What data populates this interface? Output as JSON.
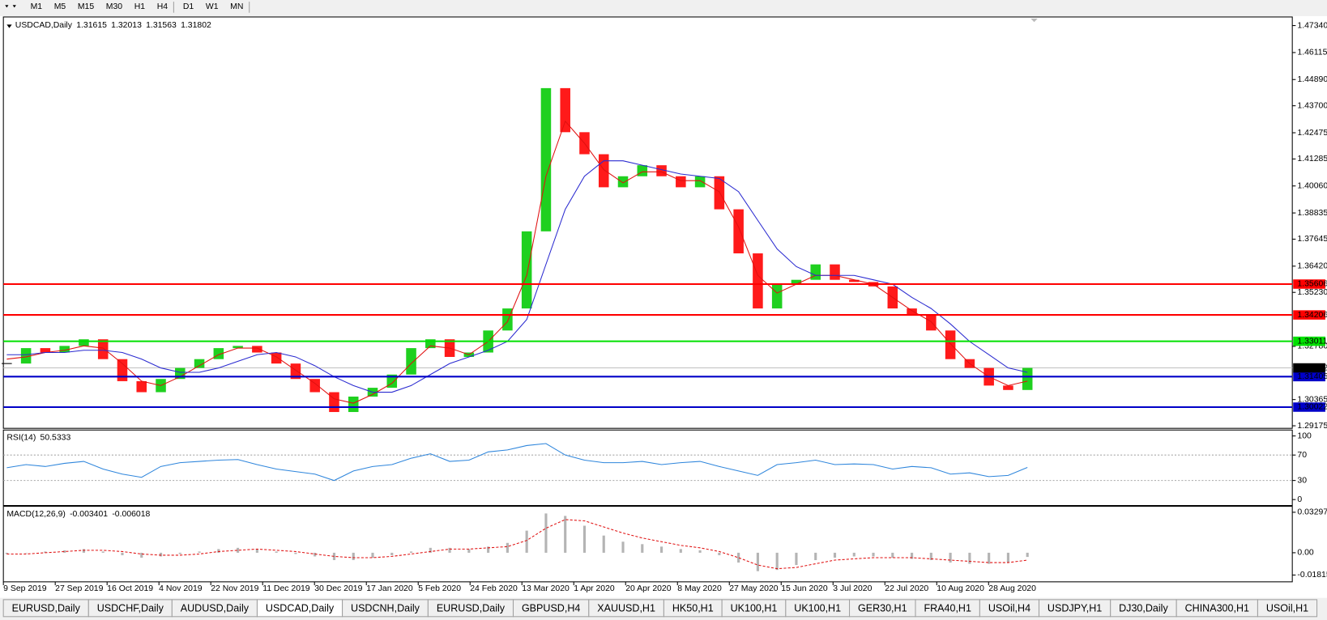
{
  "toolbar": {
    "timeframes": [
      "M1",
      "M5",
      "M15",
      "M30",
      "H1",
      "H4",
      "D1",
      "W1",
      "MN"
    ]
  },
  "chart": {
    "type": "candlestick",
    "title": "USDCAD,Daily",
    "ohlc": [
      1.31615,
      1.32013,
      1.31563,
      1.31802
    ],
    "close": [
      1.32,
      1.327,
      1.325,
      1.328,
      1.331,
      1.322,
      1.312,
      1.307,
      1.313,
      1.318,
      1.322,
      1.327,
      1.328,
      1.325,
      1.32,
      1.313,
      1.307,
      1.298,
      1.305,
      1.309,
      1.315,
      1.327,
      1.331,
      1.323,
      1.325,
      1.335,
      1.345,
      1.38,
      1.445,
      1.425,
      1.415,
      1.4,
      1.405,
      1.41,
      1.405,
      1.4,
      1.405,
      1.39,
      1.37,
      1.345,
      1.356,
      1.358,
      1.365,
      1.358,
      1.357,
      1.355,
      1.345,
      1.342,
      1.335,
      1.322,
      1.318,
      1.31,
      1.308,
      1.31802
    ],
    "up_color": "#1fd01f",
    "down_color": "#ff1a1a",
    "ma": [
      {
        "color": "#e01010",
        "values": [
          1.322,
          1.323,
          1.325,
          1.326,
          1.328,
          1.327,
          1.32,
          1.312,
          1.31,
          1.314,
          1.319,
          1.324,
          1.327,
          1.327,
          1.323,
          1.317,
          1.311,
          1.304,
          1.302,
          1.306,
          1.311,
          1.32,
          1.328,
          1.327,
          1.324,
          1.33,
          1.339,
          1.36,
          1.405,
          1.43,
          1.42,
          1.408,
          1.402,
          1.407,
          1.407,
          1.403,
          1.403,
          1.398,
          1.382,
          1.36,
          1.352,
          1.356,
          1.36,
          1.36,
          1.358,
          1.356,
          1.35,
          1.344,
          1.339,
          1.329,
          1.32,
          1.314,
          1.31,
          1.312
        ]
      },
      {
        "color": "#2a2ad0",
        "values": [
          1.324,
          1.324,
          1.325,
          1.325,
          1.326,
          1.326,
          1.325,
          1.322,
          1.318,
          1.316,
          1.316,
          1.318,
          1.321,
          1.324,
          1.325,
          1.323,
          1.319,
          1.314,
          1.31,
          1.307,
          1.307,
          1.31,
          1.315,
          1.32,
          1.323,
          1.326,
          1.33,
          1.34,
          1.365,
          1.39,
          1.405,
          1.412,
          1.412,
          1.41,
          1.408,
          1.406,
          1.405,
          1.404,
          1.398,
          1.385,
          1.372,
          1.364,
          1.36,
          1.36,
          1.36,
          1.358,
          1.356,
          1.35,
          1.345,
          1.338,
          1.33,
          1.324,
          1.318,
          1.316
        ]
      }
    ],
    "ylim": [
      1.2906,
      1.4773
    ],
    "yticks": [
      {
        "value": 1.4734,
        "label": "1.47340"
      },
      1.46115,
      {
        "value": 1.4489,
        "label": "1.44890"
      },
      {
        "value": 1.437,
        "label": "1.43700"
      },
      1.42475,
      1.41285,
      {
        "value": 1.4006,
        "label": "1.40060"
      },
      1.38835,
      1.37645,
      {
        "value": 1.3642,
        "label": "1.36420"
      },
      {
        "value": 1.3523,
        "label": "1.35230"
      },
      {
        "value": 1.3278,
        "label": "1.32780"
      },
      1.30365,
      1.29175
    ],
    "levels": [
      {
        "value": 1.35606,
        "color": "#ff0000"
      },
      {
        "value": 1.34206,
        "color": "#ff0000"
      },
      {
        "value": 1.33011,
        "color": "#00e000"
      },
      {
        "value": 1.31405,
        "color": "#0000c8"
      },
      {
        "value": 1.30022,
        "color": "#0000c8"
      }
    ],
    "bid": 1.31802,
    "dates": [
      "9 Sep 2019",
      "27 Sep 2019",
      "16 Oct 2019",
      "4 Nov 2019",
      "22 Nov 2019",
      "11 Dec 2019",
      "30 Dec 2019",
      "17 Jan 2020",
      "5 Feb 2020",
      "24 Feb 2020",
      "13 Mar 2020",
      "1 Apr 2020",
      "20 Apr 2020",
      "8 May 2020",
      "27 May 2020",
      "15 Jun 2020",
      "3 Jul 2020",
      "22 Jul 2020",
      "10 Aug 2020",
      "28 Aug 2020"
    ]
  },
  "rsi": {
    "label": "RSI(14)",
    "value": 50.5333,
    "color": "#2f86dc",
    "values": [
      50,
      55,
      52,
      57,
      60,
      48,
      40,
      35,
      52,
      58,
      60,
      62,
      63,
      55,
      48,
      44,
      40,
      30,
      45,
      52,
      55,
      65,
      72,
      60,
      62,
      75,
      78,
      85,
      88,
      70,
      62,
      58,
      58,
      60,
      55,
      58,
      60,
      52,
      45,
      38,
      55,
      58,
      62,
      55,
      56,
      55,
      48,
      52,
      50,
      40,
      42,
      36,
      38,
      50.5333
    ],
    "ylim": [
      0,
      100
    ],
    "yticks": [
      100,
      70,
      30,
      0
    ],
    "levels": [
      70,
      30
    ]
  },
  "macd": {
    "label": "MACD(12,26,9)",
    "main_value": -0.003401,
    "signal_value": -0.006018,
    "main": [
      -0.001,
      0.0,
      0.001,
      0.002,
      0.003,
      0.001,
      -0.002,
      -0.004,
      -0.003,
      -0.001,
      0.001,
      0.003,
      0.004,
      0.003,
      0.001,
      -0.001,
      -0.003,
      -0.006,
      -0.006,
      -0.004,
      -0.002,
      0.001,
      0.004,
      0.004,
      0.003,
      0.005,
      0.008,
      0.018,
      0.032,
      0.03,
      0.022,
      0.014,
      0.009,
      0.007,
      0.005,
      0.003,
      0.002,
      -0.002,
      -0.008,
      -0.015,
      -0.014,
      -0.01,
      -0.006,
      -0.004,
      -0.003,
      -0.003,
      -0.004,
      -0.005,
      -0.006,
      -0.008,
      -0.009,
      -0.009,
      -0.008,
      -0.003401
    ],
    "signal": [
      -0.001,
      -0.001,
      0.0,
      0.001,
      0.002,
      0.002,
      0.001,
      -0.001,
      -0.002,
      -0.002,
      -0.001,
      0.001,
      0.002,
      0.003,
      0.002,
      0.001,
      -0.001,
      -0.003,
      -0.004,
      -0.004,
      -0.003,
      -0.001,
      0.001,
      0.003,
      0.003,
      0.004,
      0.005,
      0.01,
      0.02,
      0.027,
      0.026,
      0.021,
      0.016,
      0.012,
      0.009,
      0.006,
      0.004,
      0.001,
      -0.004,
      -0.01,
      -0.013,
      -0.012,
      -0.009,
      -0.006,
      -0.005,
      -0.004,
      -0.004,
      -0.004,
      -0.005,
      -0.006,
      -0.007,
      -0.008,
      -0.008,
      -0.006018
    ],
    "main_color": "#b4b4b4",
    "signal_color": "#e01010",
    "ylim": [
      -0.023,
      0.0371
    ],
    "yticks": [
      0.032972,
      {
        "value": 0,
        "label": "0.00"
      },
      -0.01815
    ]
  },
  "tabs": {
    "items": [
      "EURUSD,Daily",
      "USDCHF,Daily",
      "AUDUSD,Daily",
      "USDCAD,Daily",
      "USDCNH,Daily",
      "EURUSD,Daily",
      "GBPUSD,H4",
      "XAUUSD,H1",
      "HK50,H1",
      "UK100,H1",
      "UK100,H1",
      "GER30,H1",
      "FRA40,H1",
      "USOil,H4",
      "USDJPY,H1",
      "DJ30,Daily",
      "CHINA300,H1",
      "USOil,H1"
    ],
    "active": 3
  }
}
